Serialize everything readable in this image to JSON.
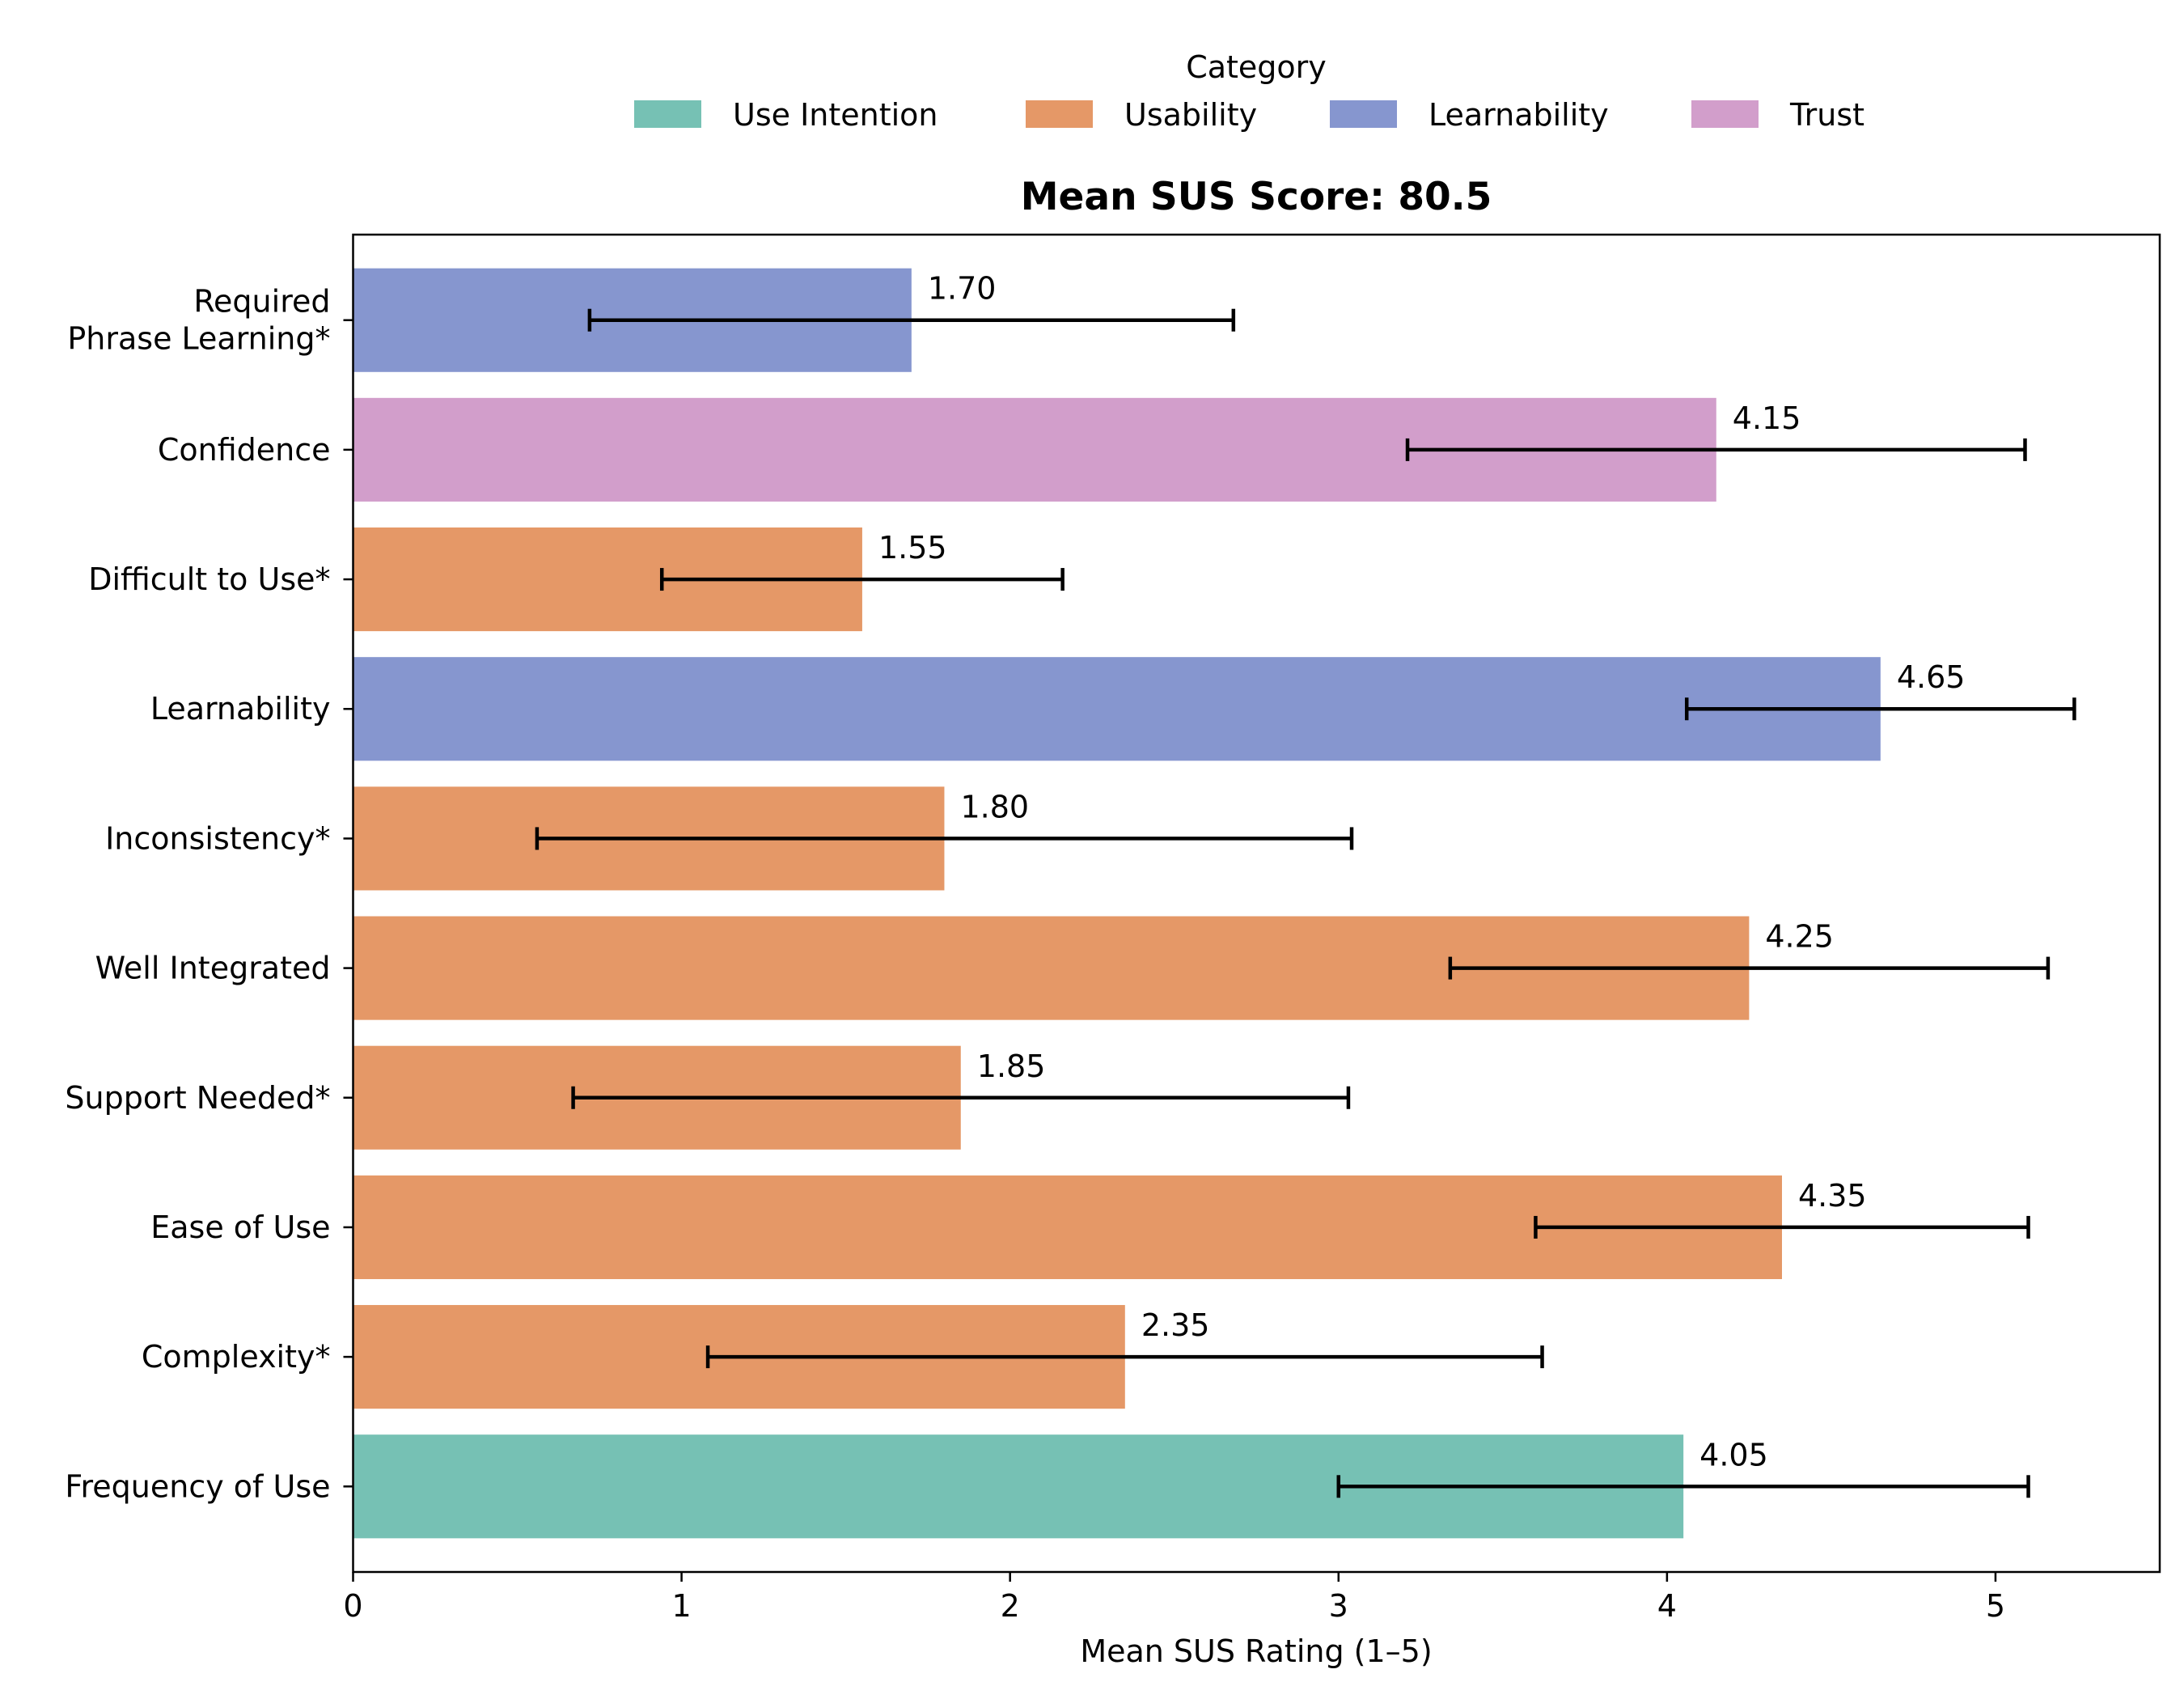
{
  "chart_data": {
    "type": "bar",
    "orientation": "horizontal",
    "title": "Mean SUS Score: 80.5",
    "xlabel": "Mean SUS Rating (1–5)",
    "ylabel": "",
    "xlim": [
      0,
      5.5
    ],
    "xticks": [
      0,
      1,
      2,
      3,
      4,
      5
    ],
    "xtick_labels": [
      "0",
      "1",
      "2",
      "3",
      "4",
      "5"
    ],
    "grid": false,
    "legend": {
      "title": "Category",
      "placement": "top-center",
      "entries": [
        {
          "label": "Use Intention",
          "color": "#76c1b4"
        },
        {
          "label": "Usability",
          "color": "#e59867"
        },
        {
          "label": "Learnability",
          "color": "#8696cf"
        },
        {
          "label": "Trust",
          "color": "#d29ecb"
        }
      ]
    },
    "bars": [
      {
        "label_lines": [
          "Frequency of Use"
        ],
        "category": "Use Intention",
        "value": 4.05,
        "value_label": "4.05",
        "err_low": 3.0,
        "err_high": 5.1
      },
      {
        "label_lines": [
          "Complexity*"
        ],
        "category": "Usability",
        "value": 2.35,
        "value_label": "2.35",
        "err_low": 1.08,
        "err_high": 3.62
      },
      {
        "label_lines": [
          "Ease of Use"
        ],
        "category": "Usability",
        "value": 4.35,
        "value_label": "4.35",
        "err_low": 3.6,
        "err_high": 5.1
      },
      {
        "label_lines": [
          "Support Needed*"
        ],
        "category": "Usability",
        "value": 1.85,
        "value_label": "1.85",
        "err_low": 0.67,
        "err_high": 3.03
      },
      {
        "label_lines": [
          "Well Integrated"
        ],
        "category": "Usability",
        "value": 4.25,
        "value_label": "4.25",
        "err_low": 3.34,
        "err_high": 5.16
      },
      {
        "label_lines": [
          "Inconsistency*"
        ],
        "category": "Usability",
        "value": 1.8,
        "value_label": "1.80",
        "err_low": 0.56,
        "err_high": 3.04
      },
      {
        "label_lines": [
          "Learnability"
        ],
        "category": "Learnability",
        "value": 4.65,
        "value_label": "4.65",
        "err_low": 4.06,
        "err_high": 5.24
      },
      {
        "label_lines": [
          "Difficult to Use*"
        ],
        "category": "Usability",
        "value": 1.55,
        "value_label": "1.55",
        "err_low": 0.94,
        "err_high": 2.16
      },
      {
        "label_lines": [
          "Confidence"
        ],
        "category": "Trust",
        "value": 4.15,
        "value_label": "4.15",
        "err_low": 3.21,
        "err_high": 5.09
      },
      {
        "label_lines": [
          "Required",
          "Phrase Learning*"
        ],
        "category": "Learnability",
        "value": 1.7,
        "value_label": "1.70",
        "err_low": 0.72,
        "err_high": 2.68
      }
    ]
  }
}
